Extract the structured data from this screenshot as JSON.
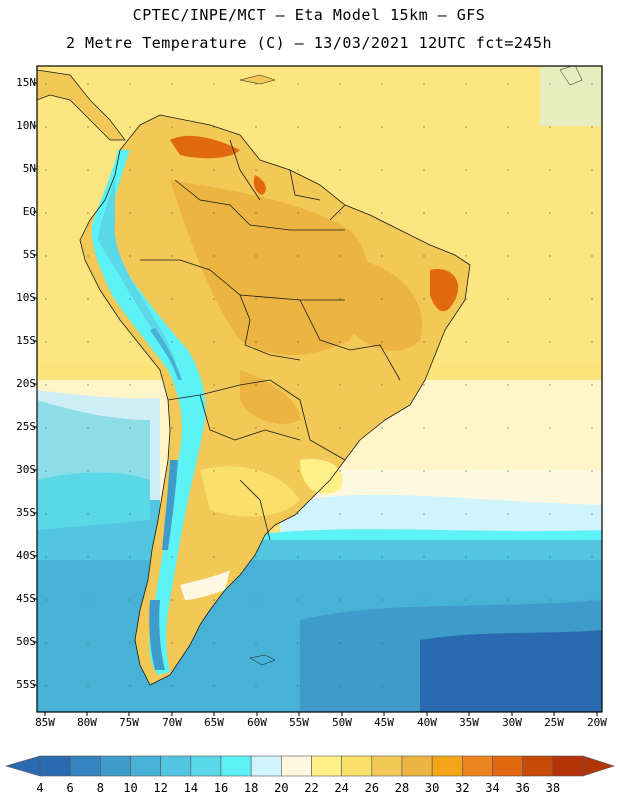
{
  "title_line1": "CPTEC/INPE/MCT –  Eta Model 15km – GFS",
  "title_line2": "2 Metre Temperature (C) – 13/03/2021 12UTC fct=245h",
  "lat_labels": [
    "15N",
    "10N",
    "5N",
    "EQ",
    "5S",
    "10S",
    "15S",
    "20S",
    "25S",
    "30S",
    "35S",
    "40S",
    "45S",
    "50S",
    "55S"
  ],
  "lon_labels": [
    "85W",
    "80W",
    "75W",
    "70W",
    "65W",
    "60W",
    "55W",
    "50W",
    "45W",
    "40W",
    "35W",
    "30W",
    "25W",
    "20W"
  ],
  "colorbar": {
    "labels": [
      "4",
      "6",
      "8",
      "10",
      "12",
      "14",
      "16",
      "18",
      "20",
      "22",
      "24",
      "26",
      "28",
      "30",
      "32",
      "34",
      "36",
      "38"
    ],
    "colors": [
      "#2a6ab0",
      "#3584c0",
      "#3f9cca",
      "#48b2d6",
      "#52c6e0",
      "#5ad8e8",
      "#5cf2f6",
      "#cff4fb",
      "#fff7e2",
      "#fff08a",
      "#f8e06a",
      "#f2c856",
      "#ecb440",
      "#f4a61a",
      "#ec8420",
      "#e06810",
      "#c84a08",
      "#b4340a"
    ],
    "low_arrow_color": "#2a6ab0",
    "high_arrow_color": "#b4340a"
  }
}
